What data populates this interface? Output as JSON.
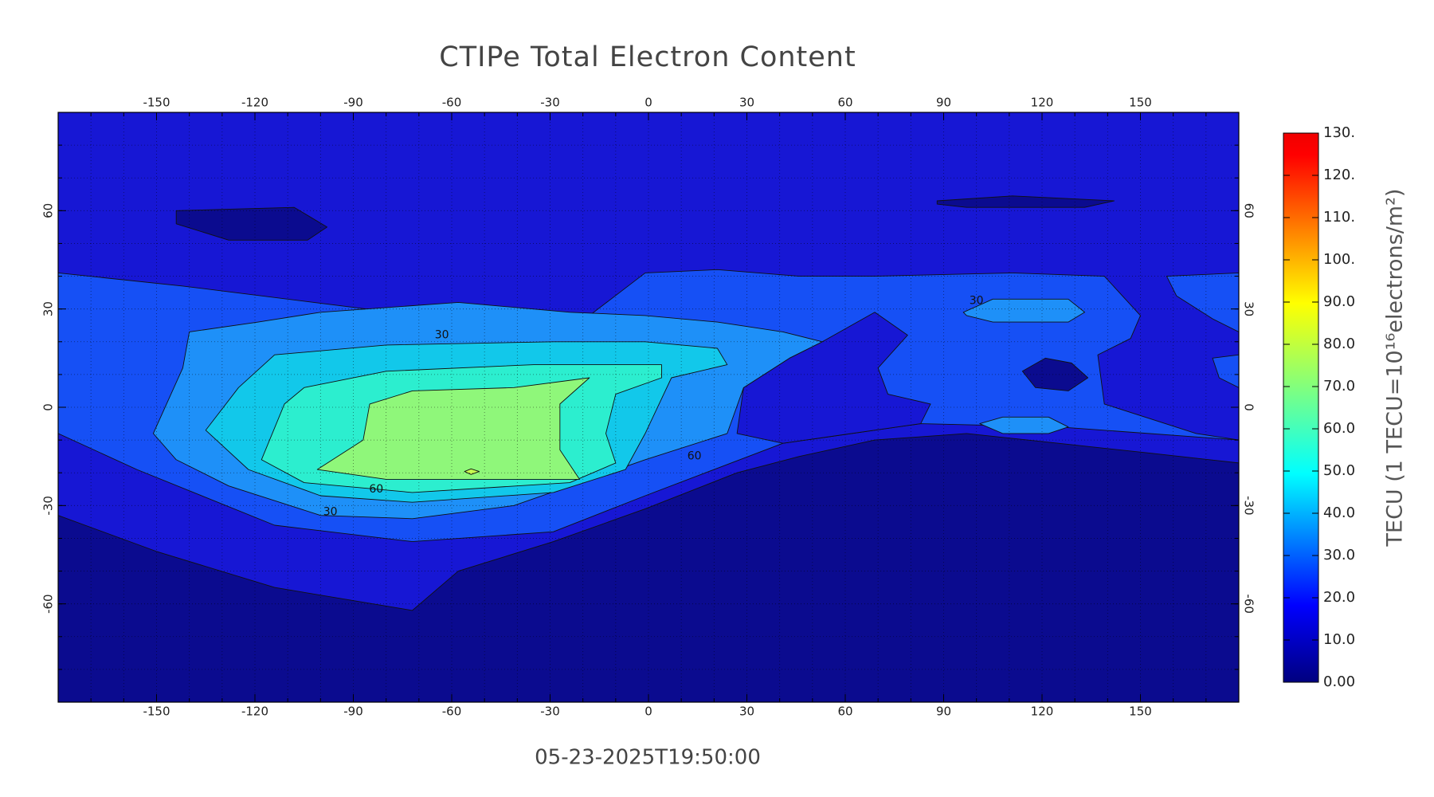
{
  "chart_data": {
    "type": "contour-map",
    "title": "CTIPe Total Electron Content",
    "subtitle": "05-23-2025T19:50:00",
    "xlim": [
      -180,
      180
    ],
    "ylim": [
      -90,
      90
    ],
    "xticks": [
      -150,
      -120,
      -90,
      -60,
      -30,
      0,
      30,
      60,
      90,
      120,
      150
    ],
    "yticks": [
      -60,
      -30,
      0,
      30,
      60
    ],
    "xgrid": [
      -170,
      -160,
      -150,
      -140,
      -130,
      -120,
      -110,
      -100,
      -90,
      -80,
      -70,
      -60,
      -50,
      -40,
      -30,
      -20,
      -10,
      0,
      10,
      20,
      30,
      40,
      50,
      60,
      70,
      80,
      90,
      100,
      110,
      120,
      130,
      140,
      150,
      160,
      170
    ],
    "ygrid": [
      -80,
      -70,
      -60,
      -50,
      -40,
      -30,
      -20,
      -10,
      0,
      10,
      20,
      30,
      40,
      50,
      60,
      70,
      80
    ],
    "levels": [
      0,
      10,
      20,
      30,
      40,
      50,
      60,
      70
    ],
    "level_colors": [
      "#0b0b8f",
      "#1717d4",
      "#1650f5",
      "#1e90f8",
      "#12c8ea",
      "#2ceecf",
      "#8ff77a",
      "#c8ff50"
    ],
    "regions": [
      {
        "level": 10,
        "lon": [
          -180,
          180,
          180,
          -180
        ],
        "lat": [
          90,
          90,
          -90,
          -90
        ]
      },
      {
        "level": 0,
        "lon": [
          -180,
          -150,
          -114,
          -72,
          -58,
          -29,
          -1,
          27,
          46,
          69,
          97,
          125,
          153,
          180,
          180,
          -180
        ],
        "lat": [
          -33,
          -44,
          -55,
          -62,
          -50,
          -41,
          -31,
          -20,
          -15,
          -10,
          -8,
          -11,
          -14,
          -17,
          -90,
          -90
        ]
      },
      {
        "level": 20,
        "lon": [
          -180,
          -142,
          -86,
          -18,
          -1,
          21,
          46,
          69,
          111,
          139,
          150,
          147,
          137,
          139,
          167,
          180,
          125,
          83,
          41,
          -1,
          -29,
          -72,
          -114,
          -156,
          -180
        ],
        "lat": [
          41,
          37,
          30,
          28,
          41,
          42,
          40,
          40,
          41,
          40,
          28,
          21,
          16,
          1,
          -8,
          -10,
          -6,
          -5,
          -11,
          -27,
          -38,
          -41,
          -36,
          -19,
          -8
        ]
      },
      {
        "level": 20,
        "lon": [
          158,
          180,
          180,
          172,
          161
        ],
        "lat": [
          40,
          41,
          23,
          27,
          34
        ]
      },
      {
        "level": 20,
        "lon": [
          172,
          180,
          180,
          174
        ],
        "lat": [
          15,
          16,
          6,
          9
        ]
      },
      {
        "level": 10,
        "lon": [
          53,
          69,
          79,
          70,
          73,
          86,
          83,
          41,
          27,
          29,
          43
        ],
        "lat": [
          20,
          29,
          22,
          12,
          4,
          1,
          -5,
          -11,
          -8,
          6,
          15
        ]
      },
      {
        "level": 30,
        "lon": [
          -151,
          -142,
          -140,
          -119,
          -100,
          -58,
          -24,
          -1,
          21,
          41,
          53,
          43,
          29,
          24,
          -1,
          -41,
          -72,
          -100,
          -128,
          -144
        ],
        "lat": [
          -8,
          12,
          23,
          26,
          29,
          32,
          29,
          28,
          26,
          23,
          20,
          15,
          6,
          -8,
          -16,
          -30,
          -34,
          -33,
          -24,
          -16
        ]
      },
      {
        "level": 40,
        "lon": [
          -135,
          -125,
          -114,
          -80,
          -29,
          -1,
          21,
          24,
          7,
          -1,
          -7,
          -29,
          -72,
          -100,
          -122
        ],
        "lat": [
          -7,
          6,
          16,
          19,
          20,
          20,
          18,
          13,
          9,
          -8,
          -19,
          -26,
          -29,
          -27,
          -19
        ]
      },
      {
        "level": 50,
        "lon": [
          -118,
          -111,
          -105,
          -80,
          -35,
          -15,
          4,
          4,
          -10,
          -13,
          -10,
          -24,
          -72,
          -105
        ],
        "lat": [
          -16,
          1,
          6,
          11,
          13,
          13,
          13,
          9,
          4,
          -8,
          -17,
          -23,
          -26,
          -23
        ]
      },
      {
        "level": 60,
        "lon": [
          -101,
          -87,
          -85,
          -72,
          -41,
          -18,
          -27,
          -27,
          -21,
          -43,
          -80
        ],
        "lat": [
          -19,
          -10,
          1,
          5,
          6,
          9,
          1,
          -13,
          -22,
          -22,
          -22
        ]
      },
      {
        "level": 70,
        "lon": [
          -56.1,
          -54.1,
          -51.6,
          -54.1
        ],
        "lat": [
          -19.6,
          -18.8,
          -19.6,
          -20.5
        ]
      },
      {
        "level": 30,
        "lon": [
          96,
          105,
          128,
          133,
          128,
          105,
          97
        ],
        "lat": [
          29,
          33,
          33,
          29,
          26,
          26,
          28
        ]
      },
      {
        "level": 30,
        "lon": [
          101,
          108,
          122,
          128,
          122,
          108
        ],
        "lat": [
          -5,
          -3,
          -3,
          -6,
          -8,
          -8
        ]
      },
      {
        "level": 0,
        "lon": [
          -144,
          -108,
          -98,
          -104,
          -128,
          -144
        ],
        "lat": [
          60,
          61,
          55,
          51,
          51,
          56
        ]
      },
      {
        "level": 0,
        "lon": [
          88,
          111,
          142,
          133,
          97,
          88
        ],
        "lat": [
          63,
          64.5,
          63,
          61,
          61,
          62
        ]
      },
      {
        "level": 0,
        "lon": [
          114,
          121,
          129,
          134,
          128,
          118
        ],
        "lat": [
          11,
          15,
          13.5,
          9,
          5,
          6
        ]
      }
    ],
    "contour_labels": {
      "lon": [
        -63,
        100,
        14,
        -83,
        -97
      ],
      "lat": [
        22,
        32.5,
        -15,
        -25,
        -32
      ],
      "values": [
        30,
        30,
        60,
        60,
        30
      ]
    },
    "colorbar": {
      "lim": [
        0,
        130
      ],
      "label": "TECU (1 TECU=10¹⁶electrons/m²)",
      "ticks": [
        {
          "value": 0,
          "label": "0.00"
        },
        {
          "value": 10,
          "label": "10.0"
        },
        {
          "value": 20,
          "label": "20.0"
        },
        {
          "value": 30,
          "label": "30.0"
        },
        {
          "value": 40,
          "label": "40.0"
        },
        {
          "value": 50,
          "label": "50.0"
        },
        {
          "value": 60,
          "label": "60.0"
        },
        {
          "value": 70,
          "label": "70.0"
        },
        {
          "value": 80,
          "label": "80.0"
        },
        {
          "value": 90,
          "label": "90.0"
        },
        {
          "value": 100,
          "label": "100."
        },
        {
          "value": 110,
          "label": "110."
        },
        {
          "value": 120,
          "label": "120."
        },
        {
          "value": 130,
          "label": "130."
        }
      ]
    }
  }
}
